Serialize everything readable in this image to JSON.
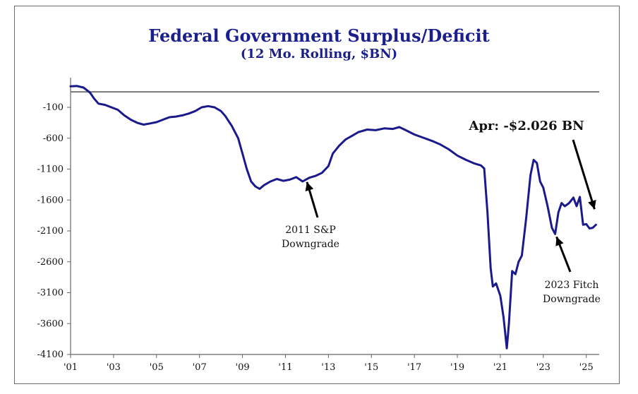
{
  "chart_data": {
    "type": "line",
    "title": "Federal Government Surplus/Deficit",
    "subtitle": "(12 Mo. Rolling, $BN)",
    "xlabel": "",
    "ylabel": "",
    "xlim": [
      2001.0,
      2025.6
    ],
    "ylim": [
      -4100,
      300
    ],
    "reference_line": 150,
    "grid": false,
    "y_ticks": [
      -100,
      -600,
      -1100,
      -1600,
      -2100,
      -2600,
      -3100,
      -3600,
      -4100
    ],
    "x_ticks": [
      {
        "value": 2001,
        "label": "'01"
      },
      {
        "value": 2003,
        "label": "'03"
      },
      {
        "value": 2005,
        "label": "'05"
      },
      {
        "value": 2007,
        "label": "'07"
      },
      {
        "value": 2009,
        "label": "'09"
      },
      {
        "value": 2011,
        "label": "'11"
      },
      {
        "value": 2013,
        "label": "'13"
      },
      {
        "value": 2015,
        "label": "'15"
      },
      {
        "value": 2017,
        "label": "'17"
      },
      {
        "value": 2019,
        "label": "'19"
      },
      {
        "value": 2021,
        "label": "'21"
      },
      {
        "value": 2023,
        "label": "'23"
      },
      {
        "value": 2025,
        "label": "'25"
      }
    ],
    "series": [
      {
        "color": "#1a1a8c",
        "points": [
          [
            2001.0,
            240
          ],
          [
            2001.3,
            245
          ],
          [
            2001.6,
            220
          ],
          [
            2001.9,
            140
          ],
          [
            2002.1,
            40
          ],
          [
            2002.3,
            -40
          ],
          [
            2002.6,
            -60
          ],
          [
            2002.9,
            -100
          ],
          [
            2003.2,
            -140
          ],
          [
            2003.5,
            -230
          ],
          [
            2003.8,
            -300
          ],
          [
            2004.1,
            -350
          ],
          [
            2004.4,
            -380
          ],
          [
            2004.7,
            -360
          ],
          [
            2005.0,
            -340
          ],
          [
            2005.3,
            -300
          ],
          [
            2005.6,
            -260
          ],
          [
            2005.9,
            -250
          ],
          [
            2006.2,
            -230
          ],
          [
            2006.5,
            -200
          ],
          [
            2006.8,
            -160
          ],
          [
            2007.1,
            -100
          ],
          [
            2007.4,
            -80
          ],
          [
            2007.7,
            -100
          ],
          [
            2008.0,
            -160
          ],
          [
            2008.2,
            -240
          ],
          [
            2008.5,
            -400
          ],
          [
            2008.8,
            -600
          ],
          [
            2009.0,
            -850
          ],
          [
            2009.2,
            -1100
          ],
          [
            2009.4,
            -1300
          ],
          [
            2009.6,
            -1380
          ],
          [
            2009.8,
            -1420
          ],
          [
            2010.0,
            -1360
          ],
          [
            2010.3,
            -1300
          ],
          [
            2010.6,
            -1260
          ],
          [
            2010.9,
            -1290
          ],
          [
            2011.2,
            -1270
          ],
          [
            2011.5,
            -1230
          ],
          [
            2011.8,
            -1300
          ],
          [
            2012.1,
            -1240
          ],
          [
            2012.4,
            -1210
          ],
          [
            2012.7,
            -1160
          ],
          [
            2013.0,
            -1050
          ],
          [
            2013.2,
            -850
          ],
          [
            2013.5,
            -720
          ],
          [
            2013.8,
            -620
          ],
          [
            2014.1,
            -560
          ],
          [
            2014.4,
            -500
          ],
          [
            2014.8,
            -460
          ],
          [
            2015.2,
            -470
          ],
          [
            2015.6,
            -440
          ],
          [
            2016.0,
            -450
          ],
          [
            2016.3,
            -420
          ],
          [
            2016.6,
            -470
          ],
          [
            2017.0,
            -540
          ],
          [
            2017.4,
            -590
          ],
          [
            2017.8,
            -640
          ],
          [
            2018.2,
            -700
          ],
          [
            2018.6,
            -780
          ],
          [
            2019.0,
            -880
          ],
          [
            2019.4,
            -950
          ],
          [
            2019.8,
            -1010
          ],
          [
            2020.1,
            -1040
          ],
          [
            2020.25,
            -1090
          ],
          [
            2020.4,
            -1800
          ],
          [
            2020.55,
            -2700
          ],
          [
            2020.65,
            -3000
          ],
          [
            2020.8,
            -2950
          ],
          [
            2021.0,
            -3150
          ],
          [
            2021.15,
            -3500
          ],
          [
            2021.3,
            -4000
          ],
          [
            2021.4,
            -3600
          ],
          [
            2021.55,
            -2750
          ],
          [
            2021.7,
            -2800
          ],
          [
            2021.85,
            -2600
          ],
          [
            2022.0,
            -2500
          ],
          [
            2022.2,
            -1900
          ],
          [
            2022.4,
            -1200
          ],
          [
            2022.55,
            -950
          ],
          [
            2022.7,
            -1000
          ],
          [
            2022.85,
            -1300
          ],
          [
            2023.0,
            -1400
          ],
          [
            2023.2,
            -1700
          ],
          [
            2023.4,
            -2050
          ],
          [
            2023.55,
            -2150
          ],
          [
            2023.7,
            -1800
          ],
          [
            2023.85,
            -1650
          ],
          [
            2024.0,
            -1700
          ],
          [
            2024.2,
            -1650
          ],
          [
            2024.4,
            -1560
          ],
          [
            2024.55,
            -1700
          ],
          [
            2024.7,
            -1550
          ],
          [
            2024.85,
            -2000
          ],
          [
            2025.0,
            -1990
          ],
          [
            2025.15,
            -2060
          ],
          [
            2025.3,
            -2050
          ],
          [
            2025.45,
            -2000
          ]
        ]
      }
    ],
    "annotations": [
      {
        "text": "2011 S&P",
        "text2": "Downgrade"
      },
      {
        "text": "2023 Fitch",
        "text2": "Downgrade"
      },
      {
        "text": "Apr: -$2.026 BN"
      }
    ]
  }
}
